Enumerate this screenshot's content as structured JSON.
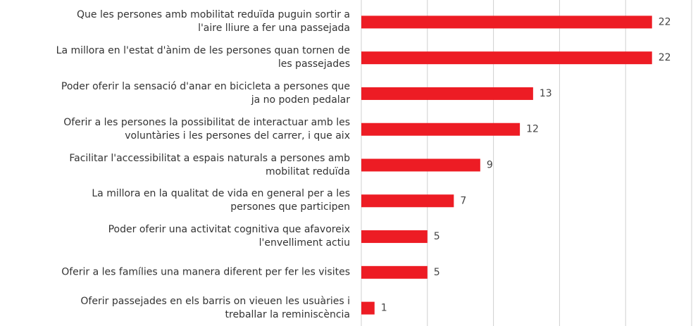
{
  "chart_data": {
    "type": "hbar",
    "categories": [
      "Que les persones amb mobilitat reduïda puguin sortir a\nl'aire lliure a fer una passejada",
      "La millora en l'estat d'ànim de les persones quan tornen de\nles passejades",
      "Poder oferir la sensació d'anar en bicicleta a persones que\nja no poden pedalar",
      "Oferir a les persones la possibilitat de interactuar amb les\nvoluntàries i les persones del carrer, i que aix",
      "Facilitar l'accessibilitat a espais naturals a persones amb\nmobilitat reduïda",
      "La millora en la qualitat de vida en general per a les\npersones que participen",
      "Poder oferir una activitat cognitiva que afavoreix\nl'envelliment actiu",
      "Oferir a les famílies una manera diferent per fer les visites",
      "Oferir passejades en els barris on vieuen les usuàries i\ntreballar la reminiscència"
    ],
    "values": [
      22,
      22,
      13,
      12,
      9,
      7,
      5,
      5,
      1
    ],
    "color": "#ed1c24",
    "xlim": [
      0,
      25
    ],
    "xticks": [
      0,
      5,
      10,
      15,
      20,
      25
    ],
    "grid": true
  }
}
